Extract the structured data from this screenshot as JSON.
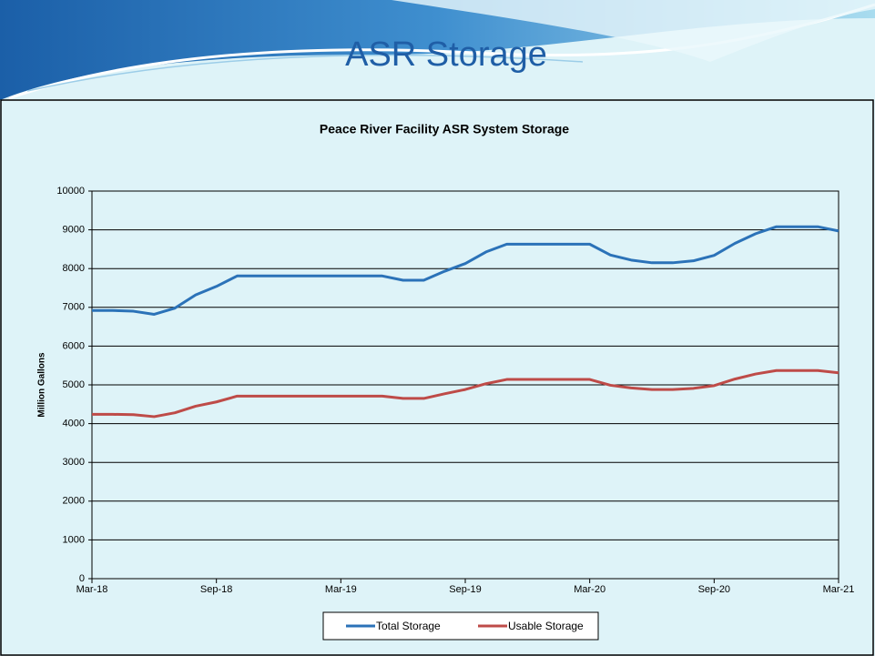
{
  "slide": {
    "title": "ASR Storage"
  },
  "chart_data": {
    "type": "line",
    "title": "Peace River Facility ASR System Storage",
    "y_label": "Million Gallons",
    "categories": [
      "Mar-18",
      null,
      null,
      null,
      null,
      null,
      "Sep-18",
      null,
      null,
      null,
      null,
      null,
      "Mar-19",
      null,
      null,
      null,
      null,
      null,
      "Sep-19",
      null,
      null,
      null,
      null,
      null,
      "Mar-20",
      null,
      null,
      null,
      null,
      null,
      "Sep-20",
      null,
      null,
      null,
      null,
      null,
      "Mar-21"
    ],
    "series": [
      {
        "name": "Total Storage",
        "color": "#2b72b8",
        "values": [
          6920,
          6920,
          6900,
          6820,
          6980,
          7320,
          7540,
          7810,
          7810,
          7810,
          7810,
          7810,
          7810,
          7810,
          7810,
          7700,
          7700,
          7930,
          8130,
          8430,
          8630,
          8630,
          8630,
          8630,
          8630,
          8350,
          8220,
          8150,
          8150,
          8200,
          8340,
          8650,
          8900,
          9080,
          9080,
          9080,
          8970
        ]
      },
      {
        "name": "Usable Storage",
        "color": "#be4b48",
        "values": [
          4240,
          4240,
          4230,
          4180,
          4280,
          4450,
          4560,
          4710,
          4710,
          4710,
          4710,
          4710,
          4710,
          4710,
          4710,
          4650,
          4650,
          4770,
          4880,
          5030,
          5140,
          5140,
          5140,
          5140,
          5140,
          4990,
          4920,
          4880,
          4880,
          4910,
          4980,
          5150,
          5280,
          5370,
          5370,
          5370,
          5310
        ]
      }
    ],
    "ylim": [
      0,
      10000
    ],
    "yticks": [
      0,
      1000,
      2000,
      3000,
      4000,
      5000,
      6000,
      7000,
      8000,
      9000,
      10000
    ],
    "grid": true,
    "legend": "bottom"
  }
}
